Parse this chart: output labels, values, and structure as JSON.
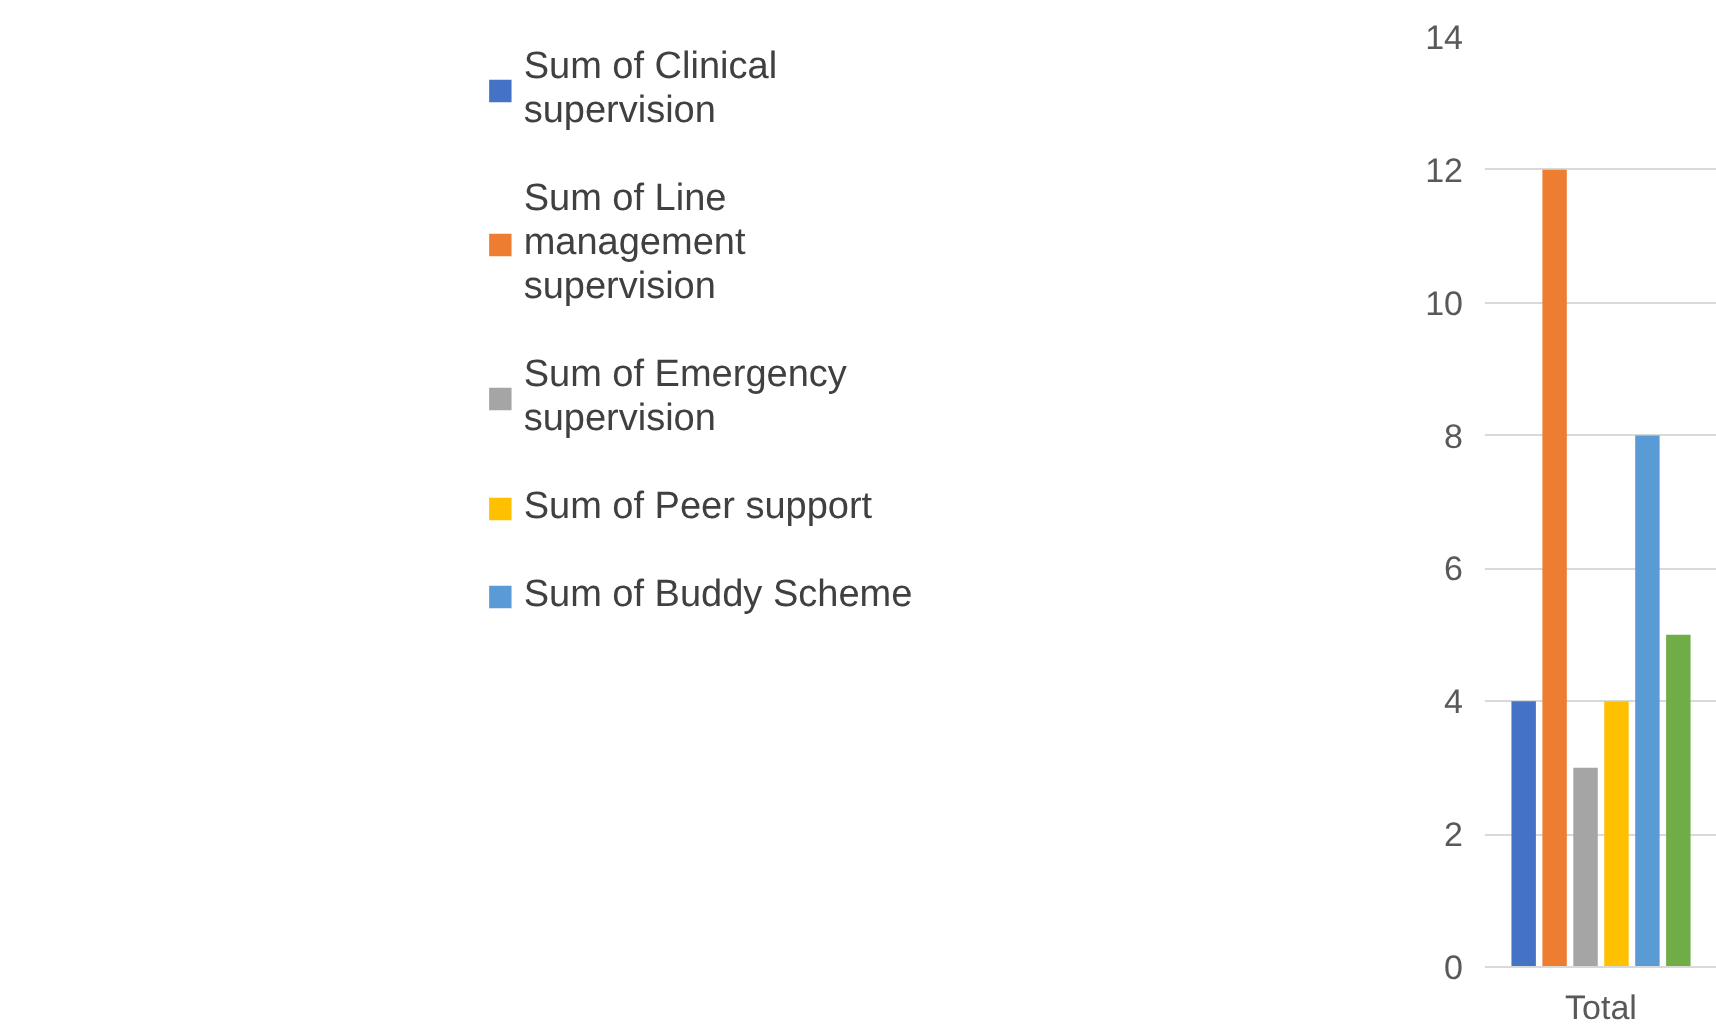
{
  "chart_data": {
    "type": "bar",
    "categories": [
      "Total"
    ],
    "series": [
      {
        "name": "Sum of Clinical supervision",
        "color": "#4472c4",
        "values": [
          4
        ]
      },
      {
        "name": "Sum of Line management supervision",
        "color": "#ed7d31",
        "values": [
          12
        ]
      },
      {
        "name": "Sum of Emergency supervision",
        "color": "#a5a5a5",
        "values": [
          3
        ]
      },
      {
        "name": "Sum of Peer support",
        "color": "#ffc000",
        "values": [
          4
        ]
      },
      {
        "name": "Sum of Buddy Scheme",
        "color": "#5b9bd5",
        "values": [
          8
        ]
      },
      {
        "color": "#70ad47",
        "values": [
          5
        ]
      }
    ],
    "ylim": [
      0,
      14
    ],
    "yticks": [
      0,
      2,
      4,
      6,
      8,
      10,
      12,
      14
    ],
    "grid": "y",
    "legend": "left"
  }
}
